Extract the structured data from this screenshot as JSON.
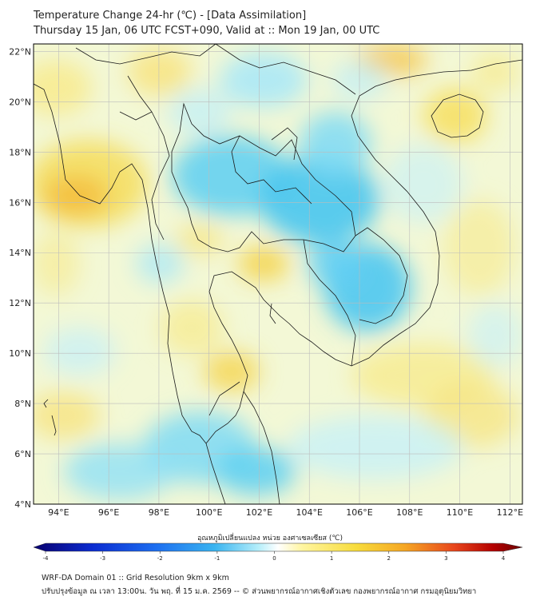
{
  "header": {
    "title_line1": "Temperature Change 24-hr (℃) - [Data Assimilation]",
    "title_line2": "Thursday 15 Jan, 06 UTC FCST+090, Valid at :: Mon 19 Jan, 00 UTC"
  },
  "map": {
    "lat_ticks": [
      "4°N",
      "6°N",
      "8°N",
      "10°N",
      "12°N",
      "14°N",
      "16°N",
      "18°N",
      "20°N",
      "22°N"
    ],
    "lon_ticks": [
      "94°E",
      "96°E",
      "98°E",
      "100°E",
      "102°E",
      "104°E",
      "106°E",
      "108°E",
      "110°E",
      "112°E"
    ],
    "lat_range": [
      4,
      22.3
    ],
    "lon_range": [
      93,
      112.5
    ],
    "field_variable": "24-hr temperature change",
    "field_units": "°C"
  },
  "colorbar": {
    "label": "อุณหภูมิเปลี่ยนแปลง หน่วย องศาเซลเซียส (℃)",
    "min": -4,
    "max": 4,
    "ticks": [
      "-4",
      "-3",
      "-2",
      "-1",
      "0",
      "1",
      "2",
      "3",
      "4"
    ],
    "colors": [
      "#08006e",
      "#0b2bd0",
      "#1d6ef0",
      "#39b4f0",
      "#7fe0f5",
      "#ffffff",
      "#fff5a0",
      "#f7dc3c",
      "#f5a623",
      "#e8461c",
      "#b40000",
      "#6a0000"
    ]
  },
  "footer": {
    "line1": "WRF-DA Domain 01 :: Grid Resolution 9km x 9km",
    "line2": "ปรับปรุงข้อมูล ณ เวลา 13:00น. วัน พฤ. ที่ 15 ม.ค. 2569 -- © ส่วนพยากรณ์อากาศเชิงตัวเลข กองพยากรณ์อากาศ กรมอุตุนิยมวิทยา"
  }
}
